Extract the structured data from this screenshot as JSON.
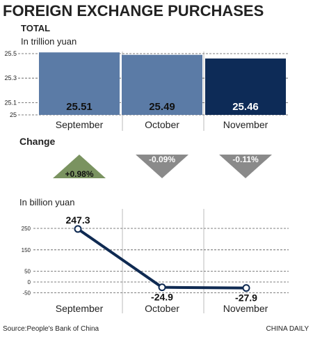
{
  "title": "FOREIGN EXCHANGE PURCHASES",
  "total_label": "TOTAL",
  "change_label": "Change",
  "source": "Source:People's Bank of China",
  "credit": "CHINA DAILY",
  "colors": {
    "bar_light": "#5b7ba6",
    "bar_dark": "#0d2b57",
    "arrow_up": "#7a9360",
    "arrow_down": "#8a8a8a",
    "line": "#0f2a52"
  },
  "chart_data": [
    {
      "type": "bar",
      "ylabel": "In trillion yuan",
      "categories": [
        "September",
        "October",
        "November"
      ],
      "values": [
        25.51,
        25.49,
        25.46
      ],
      "labels": [
        "25.51",
        "25.49",
        "25.46"
      ],
      "yticks": [
        "25.5",
        "25.3",
        "25.1",
        "25"
      ],
      "ylim": [
        25,
        25.5
      ],
      "grid": true
    },
    {
      "type": "indicator",
      "categories": [
        "September",
        "October",
        "November"
      ],
      "values": [
        0.98,
        -0.09,
        -0.11
      ],
      "labels": [
        "+0.98%",
        "-0.09%",
        "-0.11%"
      ],
      "direction": [
        "up",
        "down",
        "down"
      ]
    },
    {
      "type": "line",
      "ylabel": "In billion yuan",
      "categories": [
        "September",
        "October",
        "November"
      ],
      "values": [
        247.3,
        -24.9,
        -27.9
      ],
      "labels": [
        "247.3",
        "-24.9",
        "-27.9"
      ],
      "yticks": [
        "250",
        "150",
        "50",
        "0",
        "-50"
      ],
      "grid": true
    }
  ]
}
